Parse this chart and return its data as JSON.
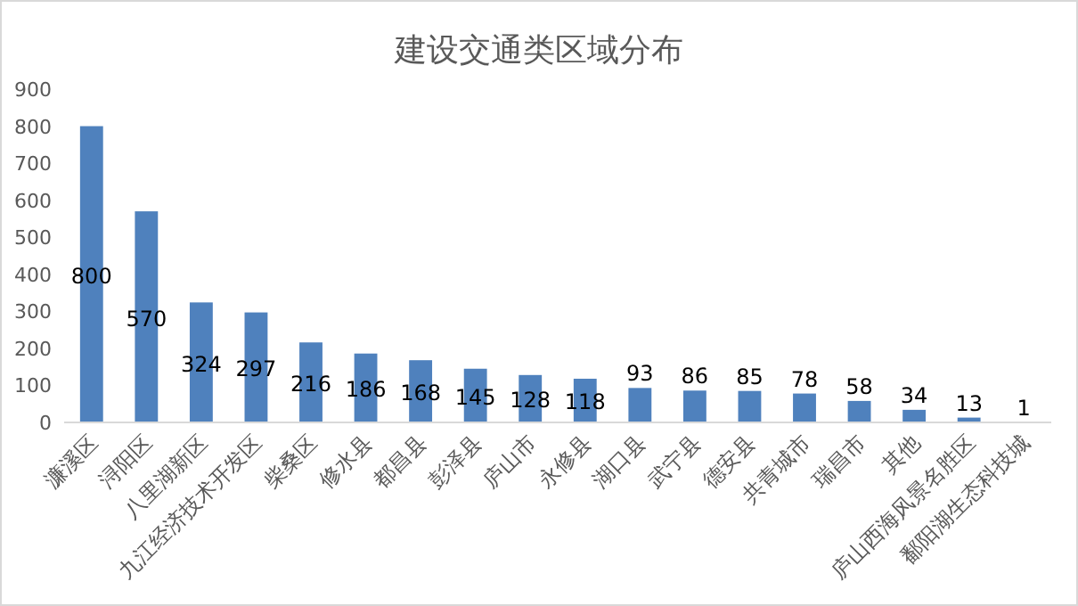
{
  "chart_data": {
    "type": "bar",
    "title": "建设交通类区域分布",
    "categories": [
      "濂溪区",
      "浔阳区",
      "八里湖新区",
      "九江经济技术开发区",
      "柴桑区",
      "修水县",
      "都昌县",
      "彭泽县",
      "庐山市",
      "永修县",
      "湖口县",
      "武宁县",
      "德安县",
      "共青城市",
      "瑞昌市",
      "其他",
      "庐山西海风景名胜区",
      "鄱阳湖生态科技城"
    ],
    "values": [
      800,
      570,
      324,
      297,
      216,
      186,
      168,
      145,
      128,
      118,
      93,
      86,
      85,
      78,
      58,
      34,
      13,
      1
    ],
    "color": "#4f81bd",
    "ylim": [
      0,
      900
    ],
    "yticks": [
      0,
      100,
      200,
      300,
      400,
      500,
      600,
      700,
      800,
      900
    ],
    "data_labels": true,
    "grid": false
  }
}
